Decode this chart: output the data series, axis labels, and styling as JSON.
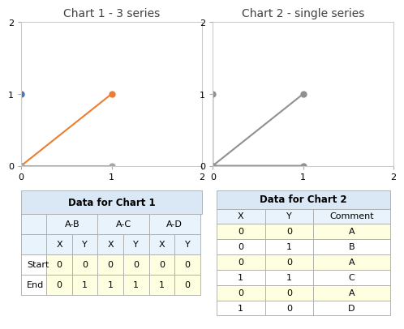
{
  "chart1_title": "Chart 1 - 3 series",
  "chart2_title": "Chart 2 - single series",
  "chart1_series": [
    {
      "label": "A-B",
      "color": "#4472C4",
      "x": [
        0,
        0
      ],
      "y": [
        0,
        1
      ]
    },
    {
      "label": "A-C",
      "color": "#ED7D31",
      "x": [
        0,
        1
      ],
      "y": [
        0,
        1
      ]
    },
    {
      "label": "A-D",
      "color": "#A5A5A5",
      "x": [
        0,
        1
      ],
      "y": [
        0,
        0
      ]
    }
  ],
  "chart2_segments_x": [
    0,
    0,
    null,
    0,
    1,
    null,
    0,
    1
  ],
  "chart2_segments_y": [
    0,
    1,
    null,
    0,
    1,
    null,
    0,
    0
  ],
  "chart2_color": "#909090",
  "chart_xlim": [
    0,
    2
  ],
  "chart_ylim": [
    0,
    2
  ],
  "chart_xticks": [
    0,
    1,
    2
  ],
  "chart_yticks": [
    0,
    1,
    2
  ],
  "table1_title": "Data for Chart 1",
  "table1_header_bg": "#DAE8F5",
  "table1_subheader_bg": "#E8F3FB",
  "table1_row_bg": "#FEFEE0",
  "table1_row_labels": [
    "Start",
    "End"
  ],
  "table1_data": [
    [
      0,
      0,
      0,
      0,
      0,
      0
    ],
    [
      0,
      1,
      1,
      1,
      1,
      0
    ]
  ],
  "table2_title": "Data for Chart 2",
  "table2_header_bg": "#DAE8F5",
  "table2_subheader_bg": "#E8F3FB",
  "table2_row_bg": "#FEFEE0",
  "table2_col_headers": [
    "X",
    "Y",
    "Comment"
  ],
  "table2_data": [
    [
      0,
      0,
      "A"
    ],
    [
      0,
      1,
      "B"
    ],
    [
      0,
      0,
      "A"
    ],
    [
      1,
      1,
      "C"
    ],
    [
      0,
      0,
      "A"
    ],
    [
      1,
      0,
      "D"
    ]
  ],
  "table2_highlight_rows": [
    0,
    2,
    4
  ],
  "bg_color": "#FFFFFF",
  "chart_bg": "#FFFFFF",
  "marker_size": 5,
  "title_fontsize": 10,
  "tick_fontsize": 8,
  "table_fontsize": 8
}
